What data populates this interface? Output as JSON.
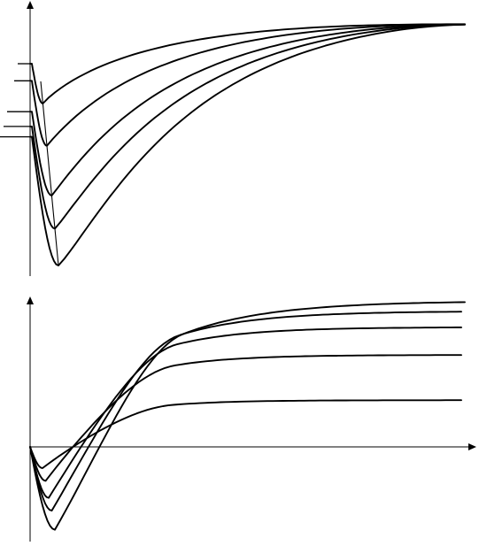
{
  "figure": {
    "colors": {
      "background": "#ffffff",
      "ink": "#000000"
    },
    "top_panel": {
      "description_visible_text": "",
      "family": [
        {
          "start": 0.0,
          "valley": 0.12,
          "plateau": 0.995
        },
        {
          "start": 0.15,
          "valley": 0.35,
          "plateau": 0.995
        },
        {
          "start": 0.42,
          "valley": 0.62,
          "plateau": 0.995
        },
        {
          "start": 0.55,
          "valley": 0.8,
          "plateau": 0.995
        },
        {
          "start": 0.64,
          "valley": 1.0,
          "plateau": 0.995
        }
      ]
    },
    "bottom_panel": {
      "family": [
        {
          "dip": 0.1,
          "plateau": 0.32
        },
        {
          "dip": 0.16,
          "plateau": 0.63
        },
        {
          "dip": 0.24,
          "plateau": 0.82
        },
        {
          "dip": 0.3,
          "plateau": 0.93
        },
        {
          "dip": 0.39,
          "plateau": 1.0
        }
      ]
    }
  }
}
